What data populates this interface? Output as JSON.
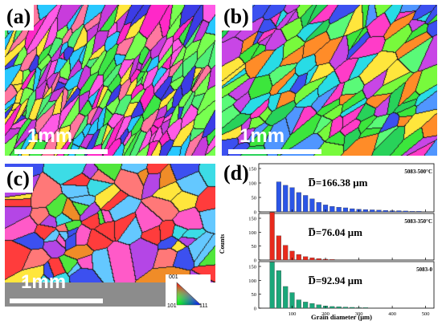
{
  "panels": {
    "a": {
      "label": "(a)",
      "scale_bar": "1mm"
    },
    "b": {
      "label": "(b)",
      "scale_bar": "1mm"
    },
    "c": {
      "label": "(c)",
      "scale_bar": "1mm"
    },
    "d": {
      "label": "(d)"
    }
  },
  "ipf_key": {
    "top": "001",
    "left": "101",
    "right": "111"
  },
  "chart_data": {
    "type": "bar",
    "xlabel": "Grain diameter (μm)",
    "ylabel": "Counts",
    "xlim": [
      0,
      525
    ],
    "x_ticks": [
      100,
      200,
      300,
      400,
      500
    ],
    "series": [
      {
        "name": "5083-500°C",
        "mean_label": "D̅=166.38 μm",
        "color": "#2b55e6",
        "ylim": [
          0,
          150
        ],
        "y_ticks": [
          0,
          50,
          100,
          150
        ],
        "bin_start": 60,
        "bin_width": 20,
        "values": [
          104,
          92,
          84,
          67,
          57,
          45,
          33,
          24,
          19,
          16,
          14,
          11,
          9,
          8,
          7,
          6,
          5,
          4,
          4,
          3,
          2,
          2,
          1
        ]
      },
      {
        "name": "5083-350°C",
        "mean_label": "D̅=76.04 μm",
        "color": "#e8291c",
        "ylim": [
          0,
          150
        ],
        "y_ticks": [
          0,
          50,
          100,
          150
        ],
        "bin_start": 40,
        "bin_width": 20,
        "values": [
          171,
          87,
          53,
          32,
          20,
          12,
          8,
          5,
          3,
          2,
          1,
          1
        ]
      },
      {
        "name": "5083-0",
        "mean_label": "D̅=92.94 μm",
        "color": "#1aa77a",
        "ylim": [
          0,
          150
        ],
        "y_ticks": [
          0,
          50,
          100,
          150
        ],
        "bin_start": 40,
        "bin_width": 20,
        "values": [
          165,
          135,
          78,
          56,
          30,
          22,
          17,
          12,
          8,
          6,
          5,
          4,
          3,
          2,
          2,
          1
        ]
      }
    ]
  }
}
